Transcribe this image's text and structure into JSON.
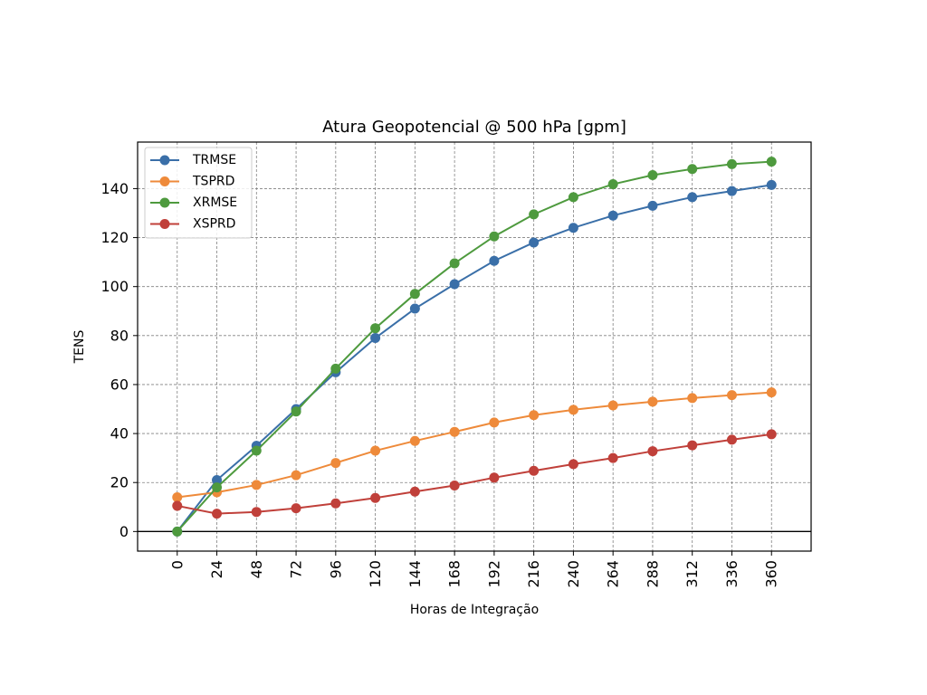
{
  "chart_data": {
    "type": "line",
    "title": "Atura Geopotencial @ 500 hPa [gpm]",
    "xlabel": "Horas de Integração",
    "ylabel": "TENS",
    "x": [
      0,
      24,
      48,
      72,
      96,
      120,
      144,
      168,
      192,
      216,
      240,
      264,
      288,
      312,
      336,
      360
    ],
    "xlim": [
      -24,
      384
    ],
    "ylim": [
      -8,
      159
    ],
    "yticks": [
      0,
      20,
      40,
      60,
      80,
      100,
      120,
      140
    ],
    "grid": true,
    "zero_line": true,
    "legend": "top-left",
    "series": [
      {
        "name": "TRMSE",
        "color": "#3a6fa8",
        "values": [
          0,
          21,
          35,
          50,
          65,
          79,
          91,
          101,
          110.5,
          118,
          124,
          129,
          133,
          136.5,
          139,
          141.5
        ]
      },
      {
        "name": "TSPRD",
        "color": "#ee8a3a",
        "values": [
          14,
          16,
          19,
          23,
          28,
          33,
          37,
          40.7,
          44.5,
          47.5,
          49.7,
          51.5,
          53,
          54.5,
          55.7,
          56.8
        ]
      },
      {
        "name": "XRMSE",
        "color": "#4e9a3e",
        "values": [
          0,
          18,
          33,
          49,
          66.5,
          83,
          97,
          109.5,
          120.5,
          129.5,
          136.5,
          141.8,
          145.5,
          148,
          150,
          151
        ]
      },
      {
        "name": "XSPRD",
        "color": "#c0403a",
        "values": [
          10.5,
          7.3,
          8,
          9.5,
          11.5,
          13.7,
          16.3,
          18.8,
          22,
          24.8,
          27.5,
          30,
          32.8,
          35.2,
          37.5,
          39.7
        ]
      }
    ]
  }
}
